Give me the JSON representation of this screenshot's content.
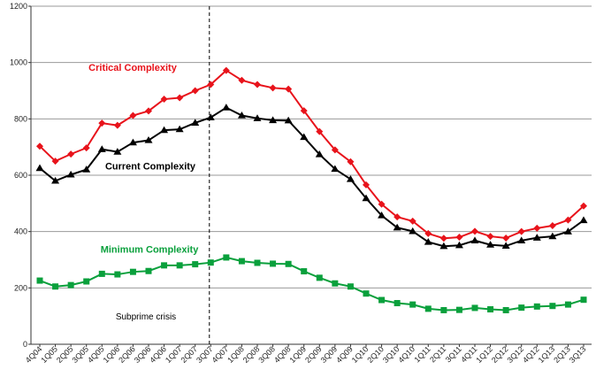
{
  "chart_data": {
    "type": "line",
    "title": "",
    "xlabel": "",
    "ylabel": "",
    "ylim": [
      0,
      1200
    ],
    "yticks": [
      0,
      200,
      400,
      600,
      800,
      1000,
      1200
    ],
    "grid": "horizontal",
    "categories": [
      "4Q04",
      "1Q05",
      "2Q05",
      "3Q05",
      "4Q05",
      "1Q06",
      "2Q06",
      "3Q06",
      "4Q06",
      "1Q07",
      "2Q07",
      "3Q07",
      "4Q07",
      "1Q08",
      "2Q08",
      "3Q08",
      "4Q08",
      "1Q09",
      "2Q09",
      "3Q09",
      "4Q09",
      "1Q10",
      "2Q10",
      "3Q10",
      "4Q10",
      "1Q11",
      "2Q11",
      "3Q11",
      "4Q11",
      "1Q12",
      "2Q12",
      "3Q12",
      "4Q12",
      "1Q13",
      "2Q13",
      "3Q13"
    ],
    "series": [
      {
        "name": "Critical Complexity",
        "color": "#e8131b",
        "marker": "diamond",
        "values": [
          703,
          650,
          675,
          697,
          785,
          777,
          812,
          828,
          870,
          875,
          900,
          922,
          972,
          937,
          922,
          910,
          906,
          829,
          755,
          690,
          648,
          566,
          497,
          452,
          437,
          393,
          376,
          380,
          401,
          383,
          377,
          400,
          412,
          421,
          441,
          491
        ]
      },
      {
        "name": "Current Complexity",
        "color": "#000000",
        "marker": "triangle",
        "values": [
          625,
          580,
          602,
          620,
          692,
          683,
          716,
          724,
          760,
          763,
          786,
          805,
          840,
          812,
          802,
          795,
          794,
          735,
          674,
          622,
          586,
          518,
          457,
          414,
          401,
          363,
          348,
          351,
          368,
          353,
          349,
          368,
          378,
          383,
          400,
          440
        ]
      },
      {
        "name": "Minimum Complexity",
        "color": "#0aa03c",
        "marker": "square",
        "values": [
          226,
          205,
          210,
          223,
          250,
          248,
          257,
          260,
          280,
          280,
          284,
          290,
          308,
          295,
          289,
          286,
          285,
          259,
          236,
          216,
          205,
          180,
          157,
          146,
          141,
          126,
          121,
          122,
          129,
          124,
          121,
          130,
          134,
          136,
          141,
          158
        ]
      }
    ],
    "annotations": {
      "event_label": "Subprime crisis",
      "event_category": "3Q07"
    }
  }
}
